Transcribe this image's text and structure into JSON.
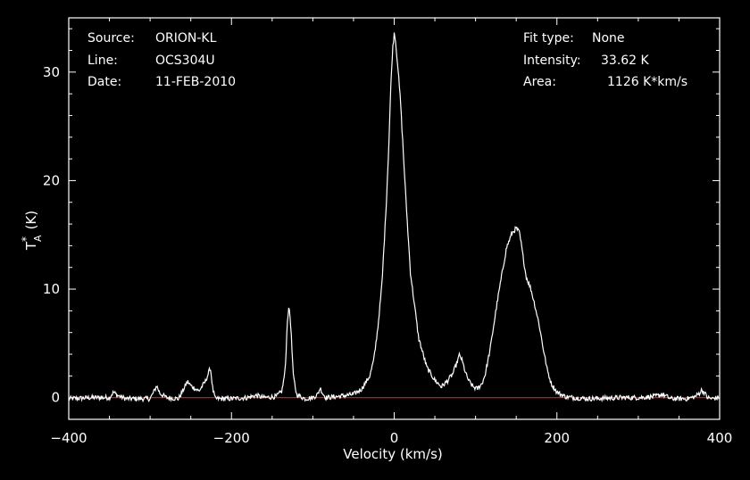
{
  "chart_data": {
    "type": "line",
    "title": "",
    "xlabel": "Velocity (km/s)",
    "ylabel": "T*A (K)",
    "ylabel_main": "T",
    "ylabel_sup": "*",
    "ylabel_sub": "A",
    "ylabel_unit": "(K)",
    "xlim": [
      -400,
      400
    ],
    "ylim": [
      -2,
      35
    ],
    "xticks": [
      -400,
      -200,
      0,
      200,
      400
    ],
    "yticks": [
      0,
      10,
      20,
      30
    ],
    "background": "#000000",
    "line_color": "#ffffff",
    "baseline_color": "#e02020",
    "baseline_value": 0,
    "series": [
      {
        "x": [
          -400,
          -370,
          -350,
          -345,
          -340,
          -330,
          -300,
          -295,
          -292,
          -288,
          -280,
          -265,
          -258,
          -254,
          -250,
          -240,
          -232,
          -228,
          -226,
          -223,
          -220,
          -200,
          -180,
          -170,
          -160,
          -145,
          -138,
          -134,
          -131,
          -129,
          -127,
          -124,
          -120,
          -110,
          -100,
          -94,
          -91,
          -88,
          -84,
          -70,
          -50,
          -40,
          -30,
          -25,
          -20,
          -15,
          -10,
          -7,
          -4,
          -2,
          0,
          1,
          2,
          4,
          6,
          8,
          12,
          15,
          20,
          30,
          40,
          50,
          58,
          65,
          72,
          77,
          80,
          82,
          83,
          85,
          88,
          92,
          97,
          102,
          108,
          112,
          118,
          122,
          126,
          132,
          138,
          145,
          150,
          152,
          154,
          158,
          162,
          168,
          172,
          178,
          183,
          188,
          193,
          200,
          210,
          220,
          240,
          280,
          300,
          320,
          330,
          340,
          360,
          370,
          375,
          378,
          381,
          385,
          390,
          400
        ],
        "y": [
          -0.1,
          0,
          0,
          0.5,
          0.2,
          -0.1,
          -0.1,
          0.6,
          1.1,
          0.4,
          0,
          -0.1,
          0.9,
          1.5,
          1.1,
          0.6,
          1.5,
          2.3,
          2.8,
          0.8,
          -0.1,
          -0.1,
          0,
          0.2,
          0,
          0.1,
          0.6,
          2.5,
          7.5,
          8.3,
          6.5,
          2.0,
          0.3,
          -0.1,
          0,
          0.3,
          0.9,
          0.4,
          0,
          0.1,
          0.3,
          0.8,
          2.0,
          3.5,
          6.5,
          10.5,
          17.5,
          22.5,
          29,
          32,
          33.6,
          33.4,
          32.5,
          31,
          29,
          27,
          21.5,
          17.5,
          11.5,
          5.5,
          2.8,
          1.6,
          1.0,
          1.5,
          2.2,
          3.2,
          3.9,
          3.7,
          3.5,
          3.0,
          2.2,
          1.5,
          1.0,
          0.8,
          1.3,
          2.2,
          4.5,
          6.5,
          8.5,
          11.2,
          13.8,
          15.2,
          15.6,
          15.4,
          15.2,
          13.2,
          11.2,
          10.0,
          8.8,
          6.8,
          4.6,
          2.6,
          1.3,
          0.5,
          0.1,
          0,
          -0.1,
          0,
          0,
          0.1,
          0.3,
          -0.1,
          -0.1,
          0.1,
          0.4,
          0.7,
          0.5,
          0,
          -0.1,
          0
        ]
      }
    ]
  },
  "annotations": {
    "left": [
      {
        "key": "Source:",
        "value": "ORION-KL"
      },
      {
        "key": "Line:",
        "value": "OCS304U"
      },
      {
        "key": "Date:",
        "value": "11-FEB-2010"
      }
    ],
    "right": [
      {
        "key": "Fit type:",
        "value": "None"
      },
      {
        "key": "Intensity:",
        "value": "33.62 K"
      },
      {
        "key": "Area:",
        "value": "1126 K*km/s"
      }
    ]
  }
}
